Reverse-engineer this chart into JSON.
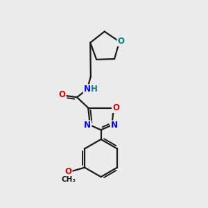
{
  "bg_color": "#ebebeb",
  "bond_color": "#1a1a1a",
  "bond_width": 1.6,
  "atom_colors": {
    "N": "#0000ee",
    "O": "#dd0000",
    "O_thf": "#008080",
    "C": "#1a1a1a",
    "H": "#008080"
  },
  "font_size_atom": 8.5,
  "font_size_small": 7.5
}
